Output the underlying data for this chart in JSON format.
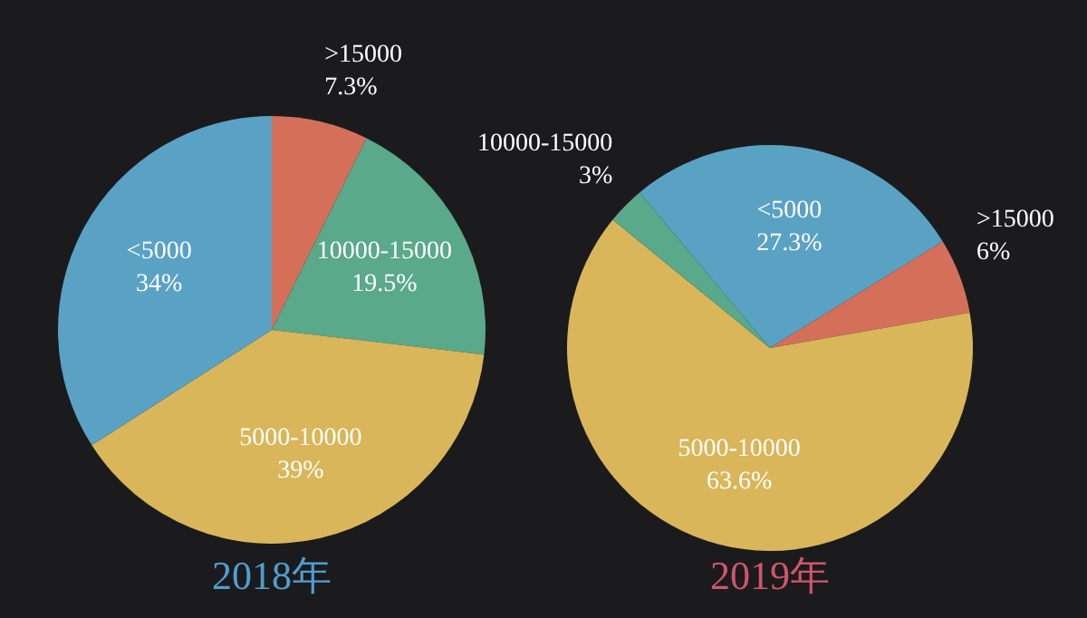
{
  "chart_data": [
    {
      "type": "pie",
      "title": "2018年",
      "categories": [
        ">15000",
        "10000-15000",
        "5000-10000",
        "<5000"
      ],
      "values": [
        7.3,
        19.5,
        39,
        34
      ],
      "value_labels": [
        "7.3%",
        "19.5%",
        "39%",
        "34%"
      ],
      "colors": [
        "#d4705a",
        "#5aa98a",
        "#d9b65a",
        "#5aa2c4"
      ]
    },
    {
      "type": "pie",
      "title": "2019年",
      "categories": [
        "<5000",
        ">15000",
        "5000-10000",
        "10000-15000"
      ],
      "values": [
        27.3,
        6,
        63.6,
        3
      ],
      "value_labels": [
        "27.3%",
        "6%",
        "63.6%",
        "3%"
      ],
      "colors": [
        "#5aa2c4",
        "#d4705a",
        "#d9b65a",
        "#5aa98a"
      ]
    }
  ]
}
